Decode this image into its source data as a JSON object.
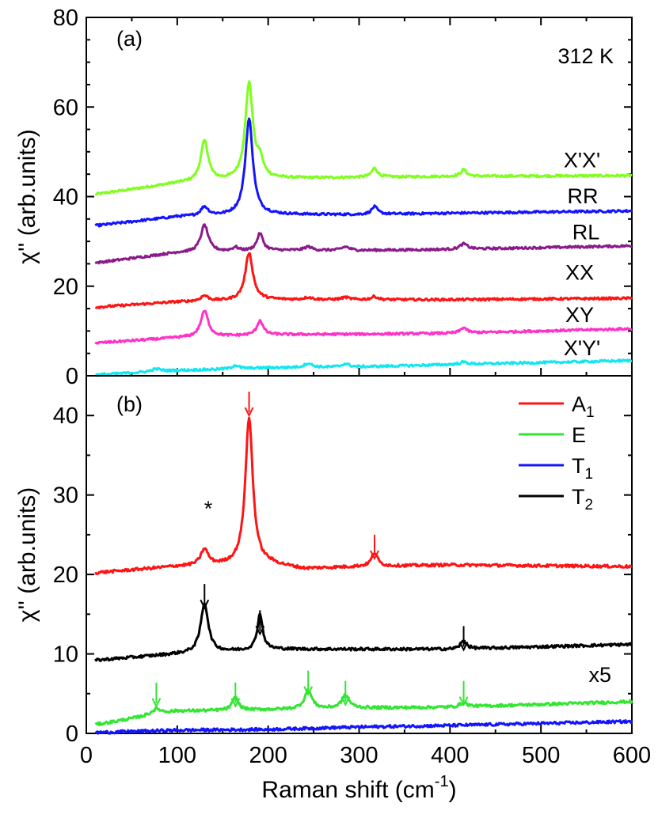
{
  "chart_data": [
    {
      "panel_label": "(a)",
      "type": "line",
      "annotation": "312 K",
      "ylabel": "χ'' (arb.units)",
      "xlim": [
        0,
        600
      ],
      "ylim": [
        0,
        80
      ],
      "yticks": [
        0,
        20,
        40,
        60,
        80
      ],
      "series": [
        {
          "name": "X'X'",
          "color": "#7fff1e",
          "baseline": [
            [
              10,
              40.5
            ],
            [
              100,
              43.0
            ],
            [
              200,
              44.0
            ],
            [
              300,
              44.3
            ],
            [
              400,
              44.5
            ],
            [
              600,
              44.7
            ]
          ],
          "peaks": [
            [
              130,
              9.0,
              5
            ],
            [
              179,
              21.5,
              5
            ],
            [
              191,
              3.5,
              4
            ],
            [
              317,
              2.0,
              4
            ],
            [
              415,
              1.5,
              4
            ]
          ]
        },
        {
          "name": "RR",
          "color": "#1414ff",
          "baseline": [
            [
              10,
              33.5
            ],
            [
              100,
              35.5
            ],
            [
              200,
              36.0
            ],
            [
              300,
              36.0
            ],
            [
              400,
              36.3
            ],
            [
              600,
              36.8
            ]
          ],
          "peaks": [
            [
              130,
              2.0,
              5
            ],
            [
              179,
              21.5,
              5
            ],
            [
              317,
              1.7,
              4
            ]
          ]
        },
        {
          "name": "RL",
          "color": "#8b1a8b",
          "baseline": [
            [
              10,
              25.2
            ],
            [
              100,
              27.5
            ],
            [
              200,
              28.0
            ],
            [
              300,
              28.0
            ],
            [
              400,
              28.2
            ],
            [
              600,
              29.0
            ]
          ],
          "peaks": [
            [
              130,
              6.0,
              5
            ],
            [
              164,
              0.8,
              4
            ],
            [
              191,
              3.8,
              4
            ],
            [
              244,
              0.8,
              5
            ],
            [
              285,
              0.8,
              5
            ],
            [
              415,
              1.2,
              5
            ]
          ]
        },
        {
          "name": "XX",
          "color": "#ff1414",
          "baseline": [
            [
              10,
              15.3
            ],
            [
              100,
              16.5
            ],
            [
              200,
              17.0
            ],
            [
              300,
              17.0
            ],
            [
              400,
              17.0
            ],
            [
              600,
              17.3
            ]
          ],
          "peaks": [
            [
              130,
              1.2,
              5
            ],
            [
              179,
              10.6,
              5
            ],
            [
              244,
              0.5,
              5
            ],
            [
              285,
              0.5,
              5
            ],
            [
              317,
              0.7,
              4
            ]
          ]
        },
        {
          "name": "XY",
          "color": "#ff32c8",
          "baseline": [
            [
              10,
              7.3
            ],
            [
              100,
              8.5
            ],
            [
              200,
              9.2
            ],
            [
              300,
              9.3
            ],
            [
              400,
              9.5
            ],
            [
              600,
              10.5
            ]
          ],
          "peaks": [
            [
              130,
              5.8,
              5
            ],
            [
              191,
              3.2,
              4
            ],
            [
              415,
              1.2,
              4
            ]
          ]
        },
        {
          "name": "X'Y'",
          "color": "#14e6f0",
          "baseline": [
            [
              10,
              0.2
            ],
            [
              100,
              1.2
            ],
            [
              200,
              1.8
            ],
            [
              300,
              2.0
            ],
            [
              400,
              2.5
            ],
            [
              600,
              3.4
            ]
          ],
          "peaks": [
            [
              77,
              0.6,
              6
            ],
            [
              164,
              0.8,
              4
            ],
            [
              244,
              0.9,
              5
            ],
            [
              285,
              0.7,
              5
            ],
            [
              415,
              0.5,
              5
            ]
          ]
        }
      ]
    },
    {
      "panel_label": "(b)",
      "type": "line",
      "ylabel": "χ'' (arb.units)",
      "xlabel": "Raman shift (cm",
      "xlabel_sup": "-1",
      "xlabel_end": ")",
      "xlim": [
        0,
        600
      ],
      "ylim": [
        0,
        45
      ],
      "xticks": [
        0,
        100,
        200,
        300,
        400,
        500,
        600
      ],
      "yticks": [
        0,
        10,
        20,
        30,
        40
      ],
      "annotations": {
        "star": "*",
        "scale": "x5"
      },
      "legend": [
        {
          "name": "A",
          "sub": "1",
          "color": "#ff1414"
        },
        {
          "name": "E",
          "sub": "",
          "color": "#32e632"
        },
        {
          "name": "T",
          "sub": "1",
          "color": "#1414ff"
        },
        {
          "name": "T",
          "sub": "2",
          "color": "#000000"
        }
      ],
      "series": [
        {
          "name": "A1",
          "color": "#ff1414",
          "baseline": [
            [
              10,
              20.2
            ],
            [
              100,
              21.0
            ],
            [
              200,
              21.3
            ],
            [
              240,
              20.7
            ],
            [
              300,
              21.0
            ],
            [
              400,
              21.2
            ],
            [
              600,
              21.0
            ]
          ],
          "peaks": [
            [
              130,
              2.0,
              5
            ],
            [
              179,
              18.5,
              5
            ],
            [
              317,
              1.7,
              4
            ]
          ]
        },
        {
          "name": "T2",
          "color": "#000000",
          "baseline": [
            [
              10,
              9.2
            ],
            [
              100,
              10.0
            ],
            [
              200,
              10.6
            ],
            [
              300,
              10.6
            ],
            [
              400,
              10.6
            ],
            [
              600,
              11.2
            ]
          ],
          "peaks": [
            [
              130,
              6.2,
              5
            ],
            [
              191,
              4.5,
              3.5
            ],
            [
              415,
              1.0,
              4
            ]
          ]
        },
        {
          "name": "E",
          "color": "#32e632",
          "baseline": [
            [
              10,
              1.1
            ],
            [
              100,
              2.8
            ],
            [
              200,
              3.0
            ],
            [
              300,
              3.2
            ],
            [
              400,
              3.3
            ],
            [
              600,
              4.0
            ]
          ],
          "peaks": [
            [
              77,
              0.7,
              7
            ],
            [
              164,
              1.6,
              4
            ],
            [
              244,
              2.3,
              5
            ],
            [
              285,
              1.6,
              5
            ],
            [
              415,
              0.5,
              5
            ]
          ]
        },
        {
          "name": "T1",
          "color": "#1414ff",
          "baseline": [
            [
              10,
              0.1
            ],
            [
              100,
              0.4
            ],
            [
              200,
              0.5
            ],
            [
              300,
              0.8
            ],
            [
              400,
              1.0
            ],
            [
              600,
              1.5
            ]
          ],
          "peaks": []
        }
      ],
      "arrows": [
        {
          "x": 179,
          "y": 43,
          "color": "#ff1414"
        },
        {
          "x": 317,
          "y": 25,
          "color": "#ff1414"
        },
        {
          "x": 130,
          "y": 18.8,
          "color": "#000000"
        },
        {
          "x": 191,
          "y": 15.5,
          "color": "#000000"
        },
        {
          "x": 415,
          "y": 13.5,
          "color": "#000000"
        },
        {
          "x": 77,
          "y": 6.4,
          "color": "#32e632"
        },
        {
          "x": 164,
          "y": 6.4,
          "color": "#32e632"
        },
        {
          "x": 244,
          "y": 7.9,
          "color": "#32e632"
        },
        {
          "x": 285,
          "y": 6.6,
          "color": "#32e632"
        },
        {
          "x": 415,
          "y": 6.6,
          "color": "#32e632"
        }
      ]
    }
  ]
}
